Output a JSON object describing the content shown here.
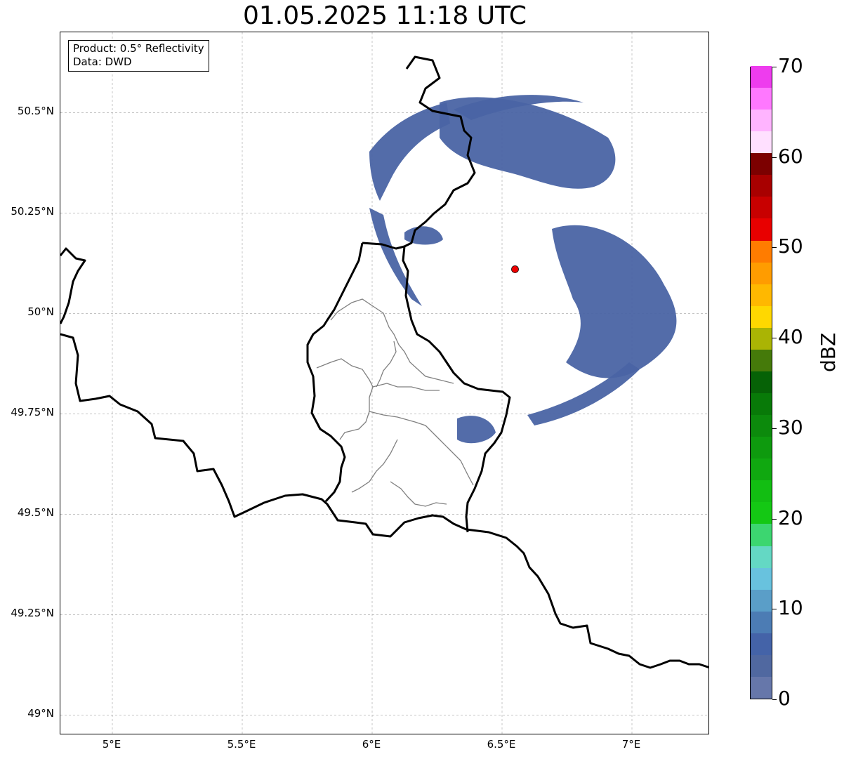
{
  "title": "01.05.2025 11:18 UTC",
  "info": {
    "product": "Product: 0.5° Reflectivity",
    "data": "Data: DWD"
  },
  "map": {
    "lon_range": [
      4.8,
      7.3
    ],
    "lat_range": [
      48.95,
      50.7
    ],
    "lat_ticks": [
      {
        "value": 50.5,
        "label": "50.5°N"
      },
      {
        "value": 50.25,
        "label": "50.25°N"
      },
      {
        "value": 50.0,
        "label": "50°N"
      },
      {
        "value": 49.75,
        "label": "49.75°N"
      },
      {
        "value": 49.5,
        "label": "49.5°N"
      },
      {
        "value": 49.25,
        "label": "49.25°N"
      },
      {
        "value": 49.0,
        "label": "49°N"
      }
    ],
    "lon_ticks": [
      {
        "value": 5.0,
        "label": "5°E"
      },
      {
        "value": 5.5,
        "label": "5.5°E"
      },
      {
        "value": 6.0,
        "label": "6°E"
      },
      {
        "value": 6.5,
        "label": "6.5°E"
      },
      {
        "value": 7.0,
        "label": "7°E"
      }
    ],
    "radar_site": {
      "lon": 6.55,
      "lat": 50.11,
      "color": "#ee0000"
    },
    "echo_color": "#4a64a4",
    "grid_color": "#b0b0b0",
    "border_color": "#000000",
    "admin_color": "#808080"
  },
  "colorbar": {
    "unit": "dBZ",
    "min": 0,
    "max": 70,
    "ticks": [
      {
        "value": 0,
        "label": "0"
      },
      {
        "value": 10,
        "label": "10"
      },
      {
        "value": 20,
        "label": "20"
      },
      {
        "value": 30,
        "label": "30"
      },
      {
        "value": 40,
        "label": "40"
      },
      {
        "value": 50,
        "label": "50"
      },
      {
        "value": 60,
        "label": "60"
      },
      {
        "value": 70,
        "label": "70"
      }
    ],
    "colors": [
      "#6677aa",
      "#5068a0",
      "#4463a8",
      "#4c7cb4",
      "#5a9ec8",
      "#68c2de",
      "#64d8c4",
      "#3cd670",
      "#14c814",
      "#12be12",
      "#10a810",
      "#0e9a0e",
      "#0c8a0c",
      "#087a08",
      "#066206",
      "#457a0a",
      "#aab404",
      "#ffd800",
      "#ffb800",
      "#ff9c00",
      "#ff7c00",
      "#e80000",
      "#c80000",
      "#a80000",
      "#7c0000",
      "#ffe0ff",
      "#ffb4ff",
      "#ff78ff",
      "#ee3cee"
    ]
  }
}
